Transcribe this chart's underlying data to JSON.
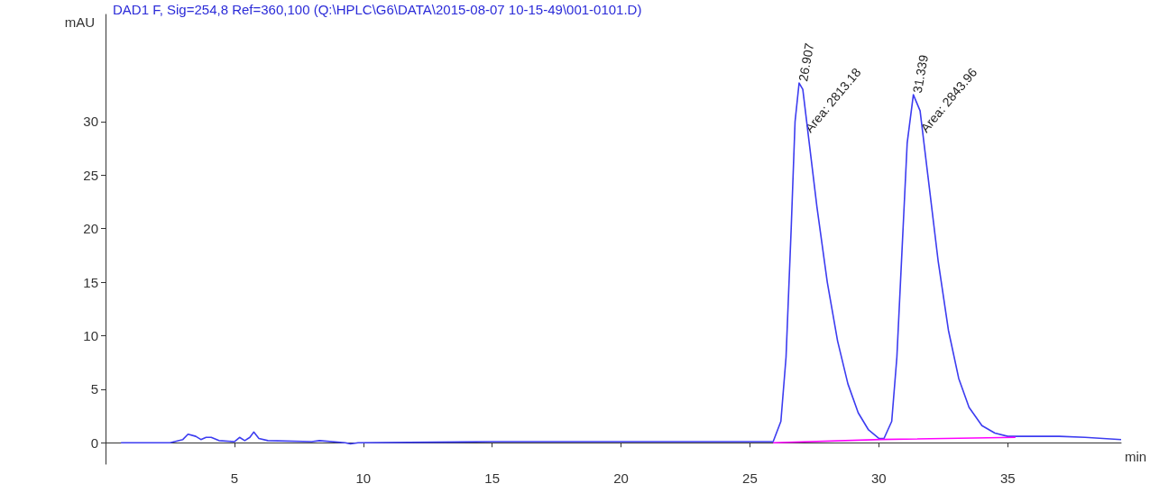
{
  "chart_data": {
    "type": "line",
    "title": "DAD1 F, Sig=254,8 Ref=360,100 (Q:\\HPLC\\G6\\DATA\\2015-08-07 10-15-49\\001-0101.D)",
    "xlabel": "min",
    "ylabel": "mAU",
    "xlim": [
      0,
      39.4
    ],
    "xticks": [
      5,
      10,
      15,
      20,
      25,
      30,
      35
    ],
    "ylim": [
      -2,
      40
    ],
    "yticks": [
      0,
      5,
      10,
      15,
      20,
      25,
      30
    ],
    "marker": "none",
    "line_style": "solid",
    "series": [
      {
        "color": "#3c3cf0",
        "x": [
          0.6,
          2.5,
          3.0,
          3.2,
          3.5,
          3.7,
          3.9,
          4.1,
          4.4,
          5.0,
          5.2,
          5.4,
          5.6,
          5.75,
          5.95,
          6.3,
          8,
          8.3,
          9.3,
          9.5,
          9.8,
          15,
          20,
          25,
          25.9,
          26.2,
          26.4,
          26.6,
          26.75,
          26.907,
          27.05,
          27.3,
          27.6,
          28,
          28.4,
          28.8,
          29.2,
          29.6,
          30.0,
          30.2,
          30.5,
          30.7,
          30.9,
          31.1,
          31.339,
          31.6,
          31.9,
          32.3,
          32.7,
          33.1,
          33.5,
          34,
          34.5,
          35,
          35.5,
          37,
          38,
          39.4
        ],
        "values": [
          0,
          0,
          0.3,
          0.8,
          0.6,
          0.3,
          0.5,
          0.5,
          0.2,
          0.1,
          0.5,
          0.2,
          0.5,
          1,
          0.4,
          0.2,
          0.1,
          0.2,
          0,
          -0.1,
          0,
          0.1,
          0.1,
          0.1,
          0.1,
          2,
          8,
          20,
          30,
          33.6,
          33,
          28,
          22,
          15,
          9.5,
          5.5,
          2.8,
          1.2,
          0.4,
          0.4,
          2,
          8,
          18,
          28,
          32.5,
          31,
          25,
          17,
          10.5,
          6,
          3.3,
          1.6,
          0.9,
          0.6,
          0.6,
          0.6,
          0.5,
          0.3
        ]
      },
      {
        "color": "#ff00ff",
        "x": [
          25.9,
          30.1,
          35.3
        ],
        "values": [
          0,
          0.3,
          0.5
        ]
      }
    ],
    "annotations": [
      {
        "text": "26.907",
        "x": 26.907,
        "y": 33.6
      },
      {
        "text": "Area: 2813.18",
        "x": 27.15,
        "y": 29
      },
      {
        "text": "31.339",
        "x": 31.339,
        "y": 32.5
      },
      {
        "text": "Area: 2843.96",
        "x": 31.65,
        "y": 29
      }
    ]
  }
}
